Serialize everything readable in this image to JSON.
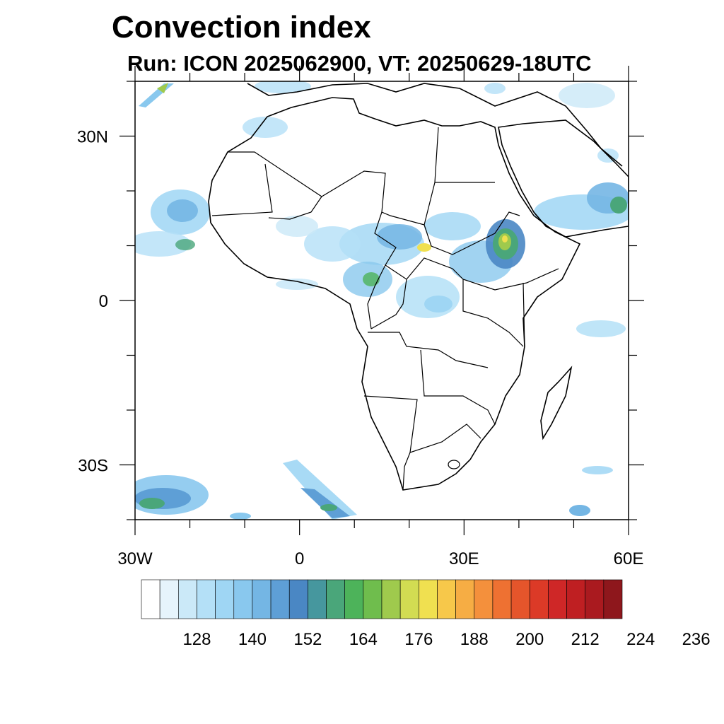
{
  "title": "Convection index",
  "subtitle": "Run: ICON 2025062900,  VT: 20250629-18UTC",
  "map": {
    "lon_range": [
      -30,
      60
    ],
    "lat_range": [
      -40,
      40
    ],
    "lat_ticks": [
      {
        "value": 30,
        "label": "30N"
      },
      {
        "value": 0,
        "label": "0"
      },
      {
        "value": -30,
        "label": "30S"
      }
    ],
    "lon_ticks": [
      {
        "value": -30,
        "label": "30W"
      },
      {
        "value": 0,
        "label": "0"
      },
      {
        "value": 30,
        "label": "30E"
      },
      {
        "value": 60,
        "label": "60E"
      }
    ]
  },
  "colorbar": {
    "labels": [
      "128",
      "140",
      "152",
      "164",
      "176",
      "188",
      "200",
      "212",
      "224",
      "236"
    ],
    "colors": [
      "#ffffff",
      "#e6f4fc",
      "#cbe9f8",
      "#b4e0f7",
      "#9fd6f4",
      "#89c8ee",
      "#74b6e4",
      "#5e9fd6",
      "#4a87c4",
      "#46979e",
      "#4aa67a",
      "#4db35a",
      "#6fbd4d",
      "#9fca4d",
      "#d2dc52",
      "#f0e050",
      "#f7c84a",
      "#f6ad44",
      "#f4903c",
      "#ee7132",
      "#e5552b",
      "#dc3a27",
      "#cf2727",
      "#bf1f22",
      "#aa1a1f",
      "#8e171c"
    ]
  }
}
